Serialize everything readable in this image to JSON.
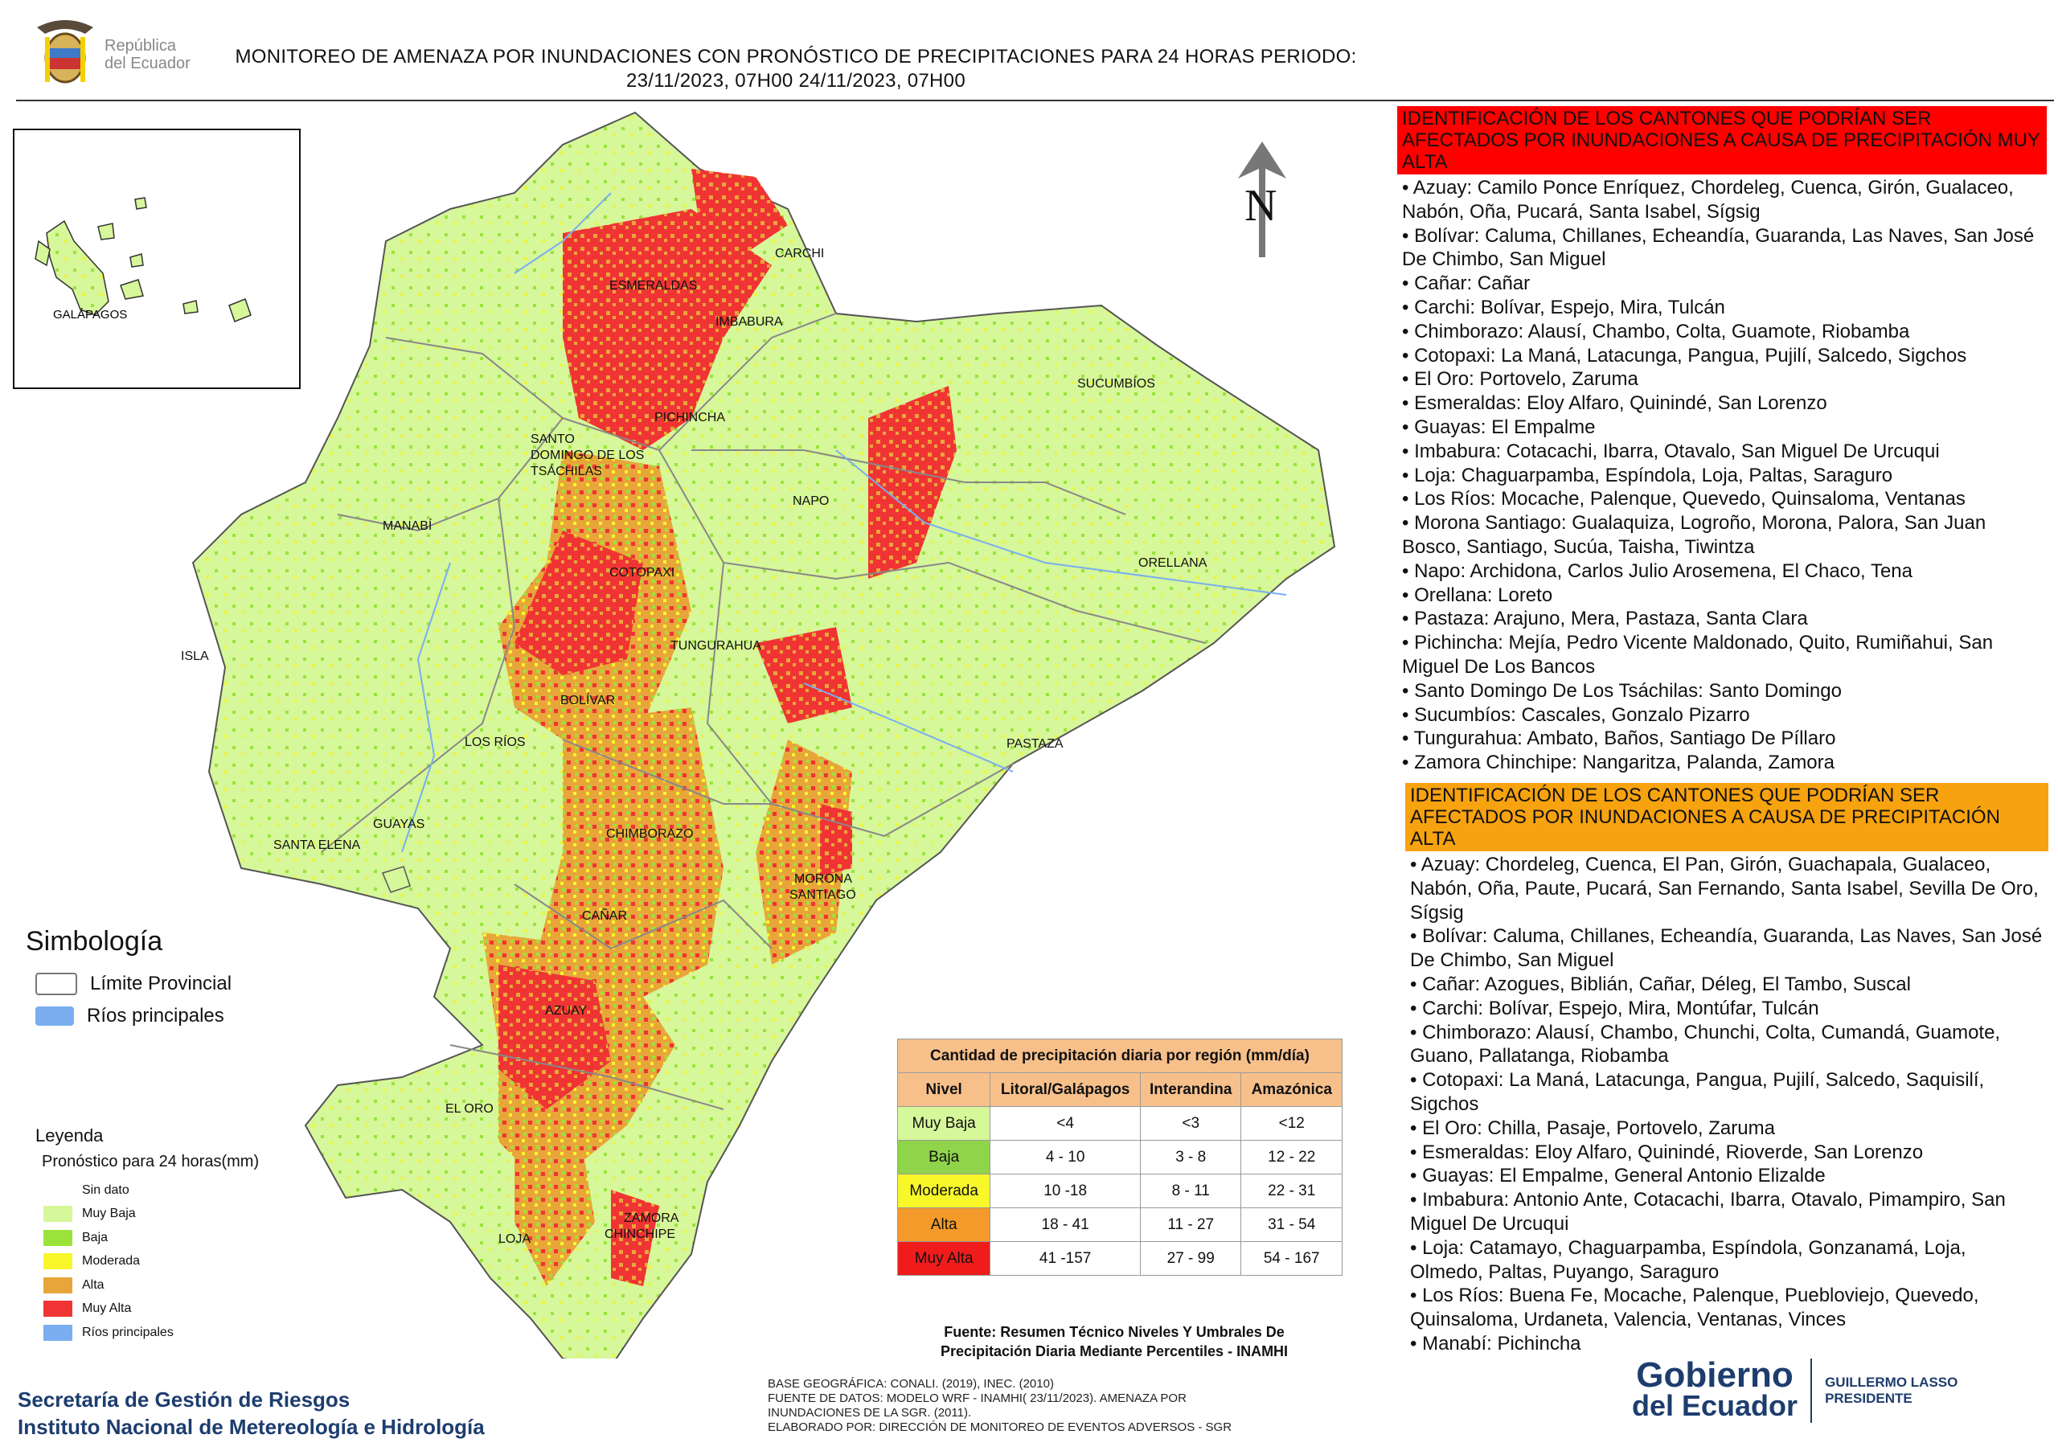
{
  "header": {
    "line1": "MONITOREO DE AMENAZA POR INUNDACIONES  CON PRONÓSTICO DE  PRECIPITACIONES PARA 24 HORAS  PERIODO:",
    "line2": "23/11/2023, 07H00 24/11/2023, 07H00"
  },
  "logo": {
    "line1": "República",
    "line2": "del Ecuador"
  },
  "map": {
    "north": "N",
    "inset_label": "GALÁPAGOS",
    "province_labels": {
      "esmeraldas": "ESMERALDAS",
      "carchi": "CARCHI",
      "imbabura": "IMBABURA",
      "sucumbios": "SUCUMBÍOS",
      "pichincha": "PICHINCHA",
      "santo_domingo_1": "SANTO",
      "santo_domingo_2": "DOMINGO DE LOS",
      "santo_domingo_3": "TSÁCHILAS",
      "manabi": "MANABÍ",
      "napo": "NAPO",
      "orellana": "ORELLANA",
      "cotopaxi": "COTOPAXI",
      "isla": "ISLA",
      "tungurahua": "TUNGURAHUA",
      "bolivar": "BOLÍVAR",
      "los_rios": "LOS RÍOS",
      "pastaza": "PASTAZA",
      "guayas": "GUAYAS",
      "chimborazo": "CHIMBORAZO",
      "santa_elena": "SANTA ELENA",
      "morona_1": "MORONA",
      "morona_2": "SANTIAGO",
      "canar": "CAÑAR",
      "azuay": "AZUAY",
      "el_oro": "EL ORO",
      "zamora_1": "ZAMORA",
      "zamora_2": "CHINCHIPE",
      "loja": "LOJA"
    }
  },
  "simbologia": {
    "title": "Simbología",
    "items": [
      {
        "label": "Límite Provincial",
        "color": "#ffffff"
      },
      {
        "label": "Ríos principales",
        "color": "#7aaef0"
      }
    ]
  },
  "leyenda": {
    "title": "Leyenda",
    "subtitle": "Pronóstico para 24 horas(mm)",
    "items": [
      {
        "label": "Sin dato",
        "color": "#ffffff"
      },
      {
        "label": "Muy Baja",
        "color": "#d6f79a"
      },
      {
        "label": "Baja",
        "color": "#9be33c"
      },
      {
        "label": "Moderada",
        "color": "#f7f72a"
      },
      {
        "label": "Alta",
        "color": "#e8a63a"
      },
      {
        "label": "Muy Alta",
        "color": "#f03434"
      },
      {
        "label": "Ríos principales",
        "color": "#7aaef0"
      }
    ]
  },
  "table": {
    "title": "Cantidad de precipitación diaria por región (mm/día)",
    "headers": [
      "Nivel",
      "Litoral/Galápagos",
      "Interandina",
      "Amazónica"
    ],
    "rows": [
      {
        "nivel": "Muy Baja",
        "color": "#d6f79a",
        "litoral": "<4",
        "interandina": "<3",
        "amazonica": "<12"
      },
      {
        "nivel": "Baja",
        "color": "#8fd44a",
        "litoral": "4 - 10",
        "interandina": "3 - 8",
        "amazonica": "12 - 22"
      },
      {
        "nivel": "Moderada",
        "color": "#f7f72a",
        "litoral": "10 -18",
        "interandina": "8 - 11",
        "amazonica": "22 - 31"
      },
      {
        "nivel": "Alta",
        "color": "#f39a2a",
        "litoral": "18 - 41",
        "interandina": "11 - 27",
        "amazonica": "31 - 54"
      },
      {
        "nivel": "Muy Alta",
        "color": "#f01c1c",
        "litoral": "41 -157",
        "interandina": "27 - 99",
        "amazonica": "54 - 167"
      }
    ],
    "source_line1": "Fuente: Resumen Técnico Niveles Y Umbrales De",
    "source_line2": "Precipitación Diaria Mediante Percentiles - INAMHI"
  },
  "muy_alta": {
    "title": "IDENTIFICACIÓN DE LOS CANTONES QUE PODRÍAN SER AFECTADOS POR INUNDACIONES  A CAUSA DE PRECIPITACIÓN MUY ALTA",
    "color": "#ff0000",
    "items": [
      "• Azuay: Camilo Ponce Enríquez, Chordeleg, Cuenca, Girón, Gualaceo, Nabón, Oña, Pucará, Santa Isabel, Sígsig",
      "• Bolívar: Caluma, Chillanes, Echeandía, Guaranda, Las Naves, San José De Chimbo, San Miguel",
      "• Cañar: Cañar",
      "• Carchi: Bolívar, Espejo, Mira, Tulcán",
      "• Chimborazo: Alausí, Chambo, Colta, Guamote, Riobamba",
      "• Cotopaxi: La Maná, Latacunga, Pangua, Pujilí, Salcedo, Sigchos",
      "• El Oro: Portovelo, Zaruma",
      "• Esmeraldas: Eloy Alfaro, Quinindé, San Lorenzo",
      "• Guayas: El Empalme",
      "• Imbabura: Cotacachi, Ibarra, Otavalo, San Miguel De Urcuqui",
      "• Loja: Chaguarpamba, Espíndola, Loja, Paltas, Saraguro",
      "• Los Ríos: Mocache, Palenque, Quevedo, Quinsaloma, Ventanas",
      "• Morona Santiago: Gualaquiza, Logroño, Morona, Palora, San Juan Bosco, Santiago, Sucúa, Taisha, Tiwintza",
      "• Napo: Archidona, Carlos Julio Arosemena, El Chaco, Tena",
      "• Orellana: Loreto",
      "• Pastaza: Arajuno, Mera, Pastaza, Santa Clara",
      "• Pichincha: Mejía, Pedro Vicente Maldonado, Quito, Rumiñahui, San Miguel De Los Bancos",
      "• Santo Domingo De Los Tsáchilas: Santo Domingo",
      "• Sucumbíos: Cascales, Gonzalo Pizarro",
      "• Tungurahua: Ambato, Baños, Santiago De Píllaro",
      "• Zamora Chinchipe: Nangaritza, Palanda, Zamora"
    ]
  },
  "alta": {
    "title": "IDENTIFICACIÓN DE LOS CANTONES QUE  PODRÍAN SER AFECTADOS POR INUNDACIONES  A CAUSA DE PRECIPITACIÓN ALTA",
    "color": "#f7a20f",
    "items": [
      "• Azuay: Chordeleg, Cuenca, El Pan, Girón, Guachapala, Gualaceo, Nabón, Oña, Paute, Pucará, San Fernando, Santa Isabel, Sevilla De Oro, Sígsig",
      "• Bolívar: Caluma, Chillanes, Echeandía, Guaranda, Las Naves, San José De Chimbo, San Miguel",
      "• Cañar: Azogues, Biblián, Cañar, Déleg, El Tambo, Suscal",
      "• Carchi: Bolívar, Espejo, Mira, Montúfar, Tulcán",
      "• Chimborazo: Alausí, Chambo, Chunchi, Colta, Cumandá, Guamote, Guano, Pallatanga, Riobamba",
      "• Cotopaxi: La Maná, Latacunga, Pangua, Pujilí, Salcedo, Saquisilí, Sigchos",
      "• El Oro: Chilla, Pasaje, Portovelo, Zaruma",
      "• Esmeraldas: Eloy Alfaro, Quinindé, Rioverde, San Lorenzo",
      "• Guayas: El Empalme, General Antonio Elizalde",
      "• Imbabura: Antonio Ante, Cotacachi, Ibarra, Otavalo, Pimampiro, San Miguel De Urcuqui",
      "• Loja: Catamayo, Chaguarpamba, Espíndola, Gonzanamá, Loja, Olmedo, Paltas, Puyango, Saraguro",
      "• Los Ríos: Buena Fe, Mocache, Palenque, Puebloviejo, Quevedo, Quinsaloma, Urdaneta, Valencia, Ventanas, Vinces",
      "• Manabí: Pichincha"
    ]
  },
  "footer": {
    "org1": "Secretaría de Gestión de Riesgos",
    "org2": "Instituto Nacional de Metereología e Hidrología",
    "src1": "BASE GEOGRÁFICA: CONALI. (2019), INEC. (2010)",
    "src2": "FUENTE DE DATOS: MODELO WRF - INAMHI( 23/11/2023).  AMENAZA POR",
    "src3": "INUNDACIONES DE LA SGR. (2011).",
    "src4": "ELABORADO POR: DIRECCIÓN DE MONITOREO DE EVENTOS ADVERSOS - SGR",
    "gob1": "Gobierno",
    "gob2": "del Ecuador",
    "president": "GUILLERMO LASSO",
    "president_title": "PRESIDENTE"
  }
}
